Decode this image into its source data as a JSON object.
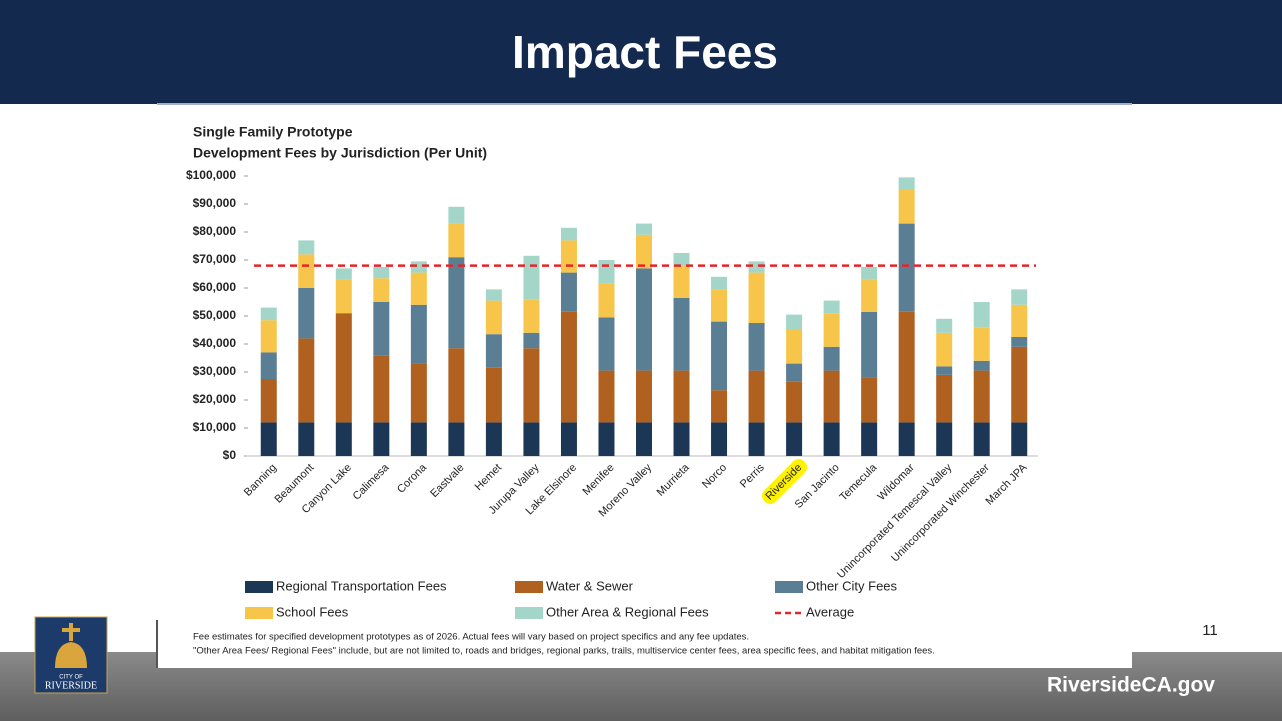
{
  "slide": {
    "title": "Impact Fees",
    "page_number": "11",
    "website": "RiversideCA.gov",
    "logo_text": [
      "CITY OF",
      "RIVERSIDE"
    ]
  },
  "chart_data": {
    "type": "stacked_bar",
    "title": "Single Family Prototype",
    "subtitle": "Development Fees by Jurisdiction (Per Unit)",
    "categories": [
      "Banning",
      "Beaumont",
      "Canyon Lake",
      "Calimesa",
      "Corona",
      "Eastvale",
      "Hemet",
      "Jurupa Valley",
      "Lake Elsinore",
      "Menifee",
      "Moreno Valley",
      "Murrieta",
      "Norco",
      "Perris",
      "Riverside",
      "San Jacinto",
      "Temecula",
      "Wildomar",
      "Unincorporated Temescal Valley",
      "Unincorporated Winchester",
      "March JPA"
    ],
    "highlight_category": "Riverside",
    "series": [
      {
        "name": "Regional Transportation Fees",
        "color": "#1c3655",
        "values": [
          12000,
          12000,
          12000,
          12000,
          12000,
          12000,
          12000,
          12000,
          12000,
          12000,
          12000,
          12000,
          12000,
          12000,
          12000,
          12000,
          12000,
          12000,
          12000,
          12000,
          12000
        ]
      },
      {
        "name": "Water & Sewer",
        "color": "#b0601f",
        "values": [
          15500,
          30000,
          39000,
          24000,
          21000,
          26500,
          19500,
          26500,
          39500,
          18500,
          18500,
          18500,
          11500,
          18500,
          14500,
          18500,
          16000,
          39500,
          17000,
          18500,
          27000
        ]
      },
      {
        "name": "Other City Fees",
        "color": "#5a7e93",
        "values": [
          9500,
          18000,
          0,
          19000,
          21000,
          32500,
          12000,
          5500,
          14000,
          19000,
          36500,
          26000,
          24500,
          17000,
          6500,
          8500,
          23500,
          31500,
          3000,
          3500,
          3500
        ]
      },
      {
        "name": "School Fees",
        "color": "#f6c54a",
        "values": [
          11500,
          12000,
          12000,
          8500,
          11500,
          12000,
          12000,
          12000,
          11500,
          12000,
          12000,
          11500,
          11500,
          18000,
          12000,
          12000,
          11500,
          12000,
          12000,
          12000,
          11500
        ]
      },
      {
        "name": "Other Area & Regional Fees",
        "color": "#a3d6c8",
        "values": [
          4500,
          5000,
          4000,
          4000,
          4000,
          6000,
          4000,
          15500,
          4500,
          8500,
          4000,
          4500,
          4500,
          4000,
          5500,
          4500,
          4500,
          4500,
          5000,
          9000,
          5500
        ]
      }
    ],
    "average": {
      "name": "Average",
      "value": 68000,
      "color": "#e3262b"
    },
    "ylim": [
      0,
      100000
    ],
    "yticks": [
      {
        "value": 0,
        "label": "$0"
      },
      {
        "value": 10000,
        "label": "$10,000"
      },
      {
        "value": 20000,
        "label": "$20,000"
      },
      {
        "value": 30000,
        "label": "$30,000"
      },
      {
        "value": 40000,
        "label": "$40,000"
      },
      {
        "value": 50000,
        "label": "$50,000"
      },
      {
        "value": 60000,
        "label": "$60,000"
      },
      {
        "value": 70000,
        "label": "$70,000"
      },
      {
        "value": 80000,
        "label": "$80,000"
      },
      {
        "value": 90000,
        "label": "$90,000"
      },
      {
        "value": 100000,
        "label": "$100,000"
      }
    ],
    "grid": false,
    "notes": [
      "Fee estimates for specified development prototypes as of 2026. Actual fees will vary based on project specifics and any fee updates.",
      "\"Other Area Fees/ Regional Fees\" include, but are not limited to, roads and bridges, regional parks, trails, multiservice center fees, area specific fees, and habitat mitigation fees."
    ]
  }
}
